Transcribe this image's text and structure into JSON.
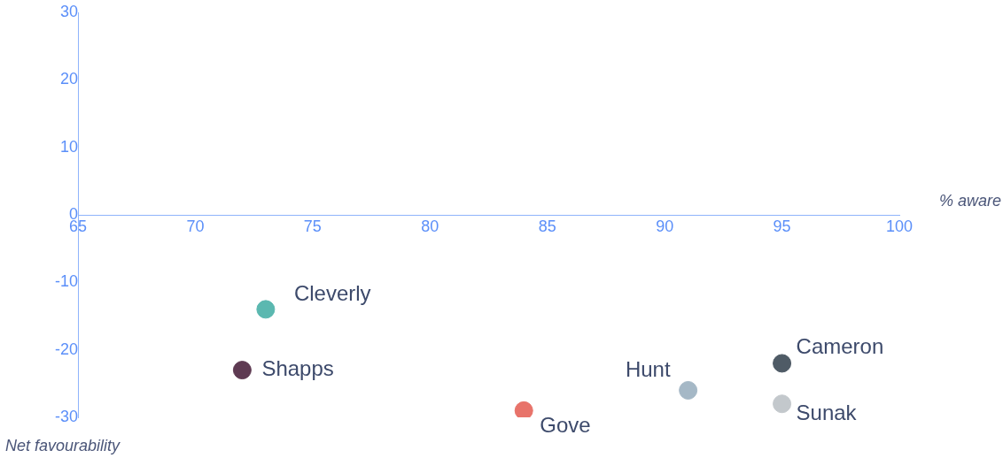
{
  "chart_data": {
    "type": "scatter",
    "xlabel": "% aware",
    "ylabel": "Net favourability",
    "xlim": [
      65,
      100
    ],
    "xticks": [
      65,
      70,
      75,
      80,
      85,
      90,
      95,
      100
    ],
    "ylim": [
      -30,
      30
    ],
    "yticks": [
      -30,
      -20,
      -10,
      0,
      10,
      20,
      30
    ],
    "grid": false,
    "legend": false,
    "marker": "circle",
    "series": [
      {
        "name": "Cleverly",
        "color": "#5bb8b0",
        "x": [
          73
        ],
        "values": [
          -14
        ]
      },
      {
        "name": "Shapps",
        "color": "#5e3a52",
        "x": [
          72
        ],
        "values": [
          -23
        ]
      },
      {
        "name": "Gove",
        "color": "#e8736a",
        "x": [
          84
        ],
        "values": [
          -29
        ]
      },
      {
        "name": "Hunt",
        "color": "#a5b8c6",
        "x": [
          91
        ],
        "values": [
          -26
        ]
      },
      {
        "name": "Cameron",
        "color": "#4f5b66",
        "x": [
          95
        ],
        "values": [
          -22
        ]
      },
      {
        "name": "Sunak",
        "color": "#c3c8cc",
        "x": [
          95
        ],
        "values": [
          -28
        ]
      }
    ]
  }
}
